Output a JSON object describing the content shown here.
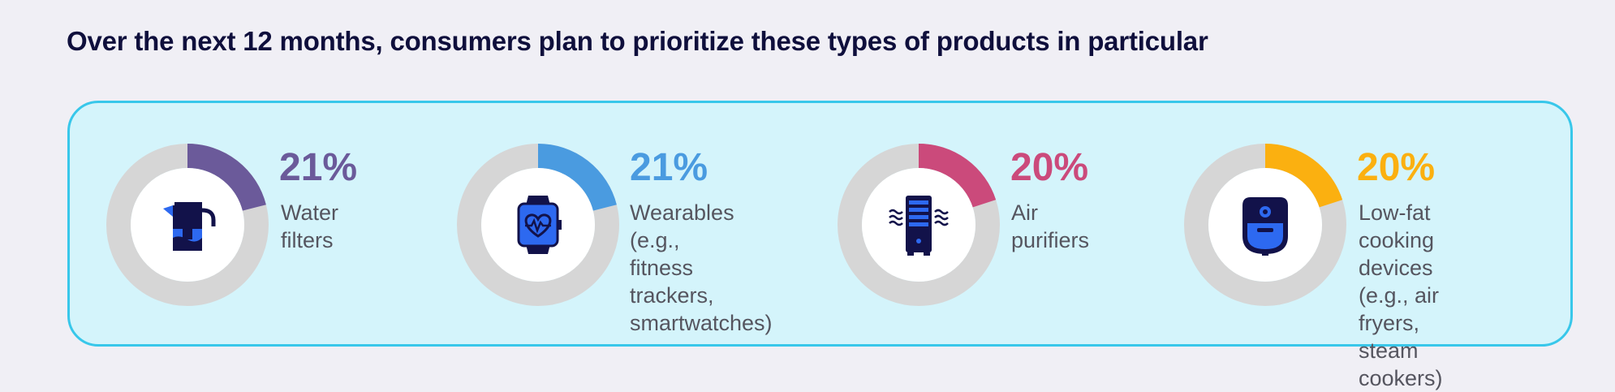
{
  "title": "Over the next 12 months, consumers plan to prioritize these types of products in particular",
  "chart_data": {
    "type": "pie",
    "categories": [
      "Water filters",
      "Wearables (e.g.,\nfitness trackers,\nsmartwatches)",
      "Air purifiers",
      "Low-fat cooking\ndevices (e.g., air\nfryers, steam\ncookers)"
    ],
    "values": [
      21,
      21,
      20,
      20
    ],
    "value_labels": [
      "21%",
      "21%",
      "20%",
      "20%"
    ],
    "colors": [
      "#6b5a9a",
      "#4a9be0",
      "#cb4a7b",
      "#fbb010"
    ],
    "track_color": "#d6d6d6",
    "icons": [
      "water-pitcher-icon",
      "smartwatch-icon",
      "air-purifier-icon",
      "air-fryer-icon"
    ]
  }
}
